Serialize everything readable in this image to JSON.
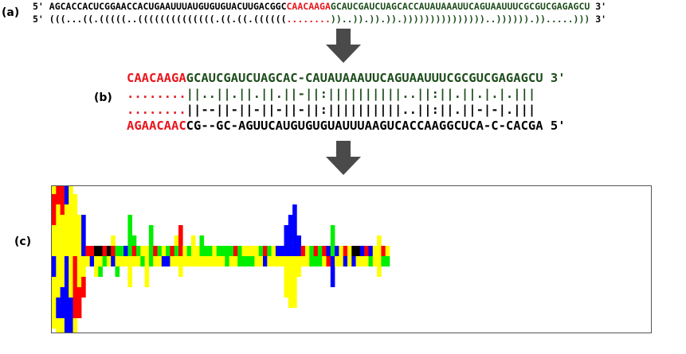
{
  "panel_a": {
    "label": "(a)",
    "seq_prefix": "5' ",
    "seq_black": "AGCACCACUCGGAACCACUGAAUUUAUGUGUGUACUUGACGGC",
    "seq_red": "CAACAAGA",
    "seq_green": "GCAUCGAUCUAGCACCAUAUAAAUUCAGUAAUUUCGCGUCGAGAGCU",
    "seq_suffix": " 3'",
    "struct_prefix": "5' ",
    "struct_black": "(((...((.(((((..((((((((((((((.((.((.((((((",
    "struct_red": "........",
    "struct_green": "))..)).)).)).)))))))))))))))..)))))).)).....)))",
    "struct_suffix": " 3'"
  },
  "panel_b": {
    "label": "(b)",
    "row1_red": "CAACAAGA",
    "row1_green": "GCAUCGAUCUAGCAC-CAUAUAAAUUCAGUAAUUUCGCGUCGAGAGCU 3'",
    "row2_red": "........",
    "row2_green": "||..||.||.||.||-||:||||||||||..||:||.||.|.|.|||",
    "row3_red": "........",
    "row3_black": "||--||-||-||-||-||:||||||||||..||:||.||-|-|.|||",
    "row4_red": "AGAACAAC",
    "row4_black": "CG--GC-AGUUCAUGUGUGUAUUUAAGUCACCAAGGCUCA-C-CACGA 5'"
  },
  "panel_c": {
    "label": "(c)"
  },
  "colors": {
    "red": "#ff0000",
    "green": "#00ee00",
    "blue": "#0000ff",
    "yellow": "#ffff00",
    "black": "#000000",
    "arrow": "#4a4a4a"
  },
  "chart_data": {
    "type": "bar",
    "description_of_encoding": "",
    "columns": [
      {
        "up": [
          [
            "yellow",
            3
          ],
          [
            "red",
            3
          ],
          [
            "yellow",
            2
          ]
        ],
        "down": [
          [
            "blue",
            2
          ],
          [
            "yellow",
            3
          ],
          [
            "yellow",
            2
          ]
        ]
      },
      {
        "up": [
          [
            "yellow",
            5
          ],
          [
            "red",
            3
          ]
        ],
        "down": [
          [
            "yellow",
            4
          ],
          [
            "blue",
            2
          ],
          [
            "yellow",
            2
          ]
        ]
      },
      {
        "up": [
          [
            "yellow",
            4
          ],
          [
            "red",
            3
          ]
        ],
        "down": [
          [
            "yellow",
            3
          ],
          [
            "blue",
            3
          ],
          [
            "yellow",
            3
          ]
        ]
      },
      {
        "up": [
          [
            "yellow",
            5
          ],
          [
            "blue",
            4
          ]
        ],
        "down": [
          [
            "blue",
            4
          ],
          [
            "blue",
            4
          ]
        ]
      },
      {
        "up": [
          [
            "yellow",
            5
          ],
          [
            "yellow",
            3
          ],
          [
            "blue",
            1
          ]
        ],
        "down": [
          [
            "yellow",
            4
          ],
          [
            "blue",
            2
          ],
          [
            "blue",
            3
          ]
        ]
      },
      {
        "up": [
          [
            "yellow",
            4
          ],
          [
            "yellow",
            2
          ]
        ],
        "down": [
          [
            "red",
            4
          ],
          [
            "red",
            2
          ],
          [
            "yellow",
            3
          ]
        ]
      },
      {
        "up": [
          [
            "yellow",
            2
          ],
          [
            "yellow",
            2
          ]
        ],
        "down": [
          [
            "yellow",
            3
          ],
          [
            "red",
            3
          ]
        ]
      },
      {
        "up": [
          [
            "blue",
            2
          ],
          [
            "blue",
            2
          ]
        ],
        "down": [
          [
            "yellow",
            2
          ],
          [
            "red",
            2
          ]
        ]
      },
      {
        "up": [
          [
            "red",
            1
          ]
        ],
        "down": [
          [
            "yellow",
            1
          ]
        ]
      },
      {
        "up": [
          [
            "red",
            1
          ]
        ],
        "down": [
          [
            "blue",
            1
          ]
        ]
      },
      {
        "up": [
          [
            "black",
            1
          ]
        ],
        "down": [
          [
            "yellow",
            2
          ]
        ]
      },
      {
        "up": [
          [
            "black",
            1
          ]
        ],
        "down": [
          [
            "yellow",
            1
          ],
          [
            "green",
            1
          ]
        ]
      },
      {
        "up": [
          [
            "red",
            1
          ]
        ],
        "down": [
          [
            "green",
            1
          ]
        ]
      },
      {
        "up": [
          [
            "black",
            1
          ]
        ],
        "down": [
          [
            "yellow",
            1
          ]
        ]
      },
      {
        "up": [
          [
            "red",
            1
          ],
          [
            "yellow",
            1
          ]
        ],
        "down": [
          [
            "blue",
            1
          ]
        ]
      },
      {
        "up": [
          [
            "green",
            1
          ]
        ],
        "down": [
          [
            "yellow",
            1
          ],
          [
            "green",
            1
          ]
        ]
      },
      {
        "up": [
          [
            "green",
            1
          ]
        ],
        "down": [
          [
            "yellow",
            1
          ]
        ]
      },
      {
        "up": [
          [
            "blue",
            1
          ]
        ],
        "down": [
          [
            "yellow",
            1
          ]
        ]
      },
      {
        "up": [
          [
            "green",
            4
          ]
        ],
        "down": [
          [
            "yellow",
            3
          ]
        ]
      },
      {
        "up": [
          [
            "red",
            1
          ],
          [
            "green",
            1
          ]
        ],
        "down": [
          [
            "yellow",
            1
          ]
        ]
      },
      {
        "up": [
          [
            "green",
            1
          ]
        ],
        "down": [
          [
            "yellow",
            1
          ]
        ]
      },
      {
        "up": [
          [
            "yellow",
            1
          ]
        ],
        "down": [
          [
            "green",
            1
          ]
        ]
      },
      {
        "up": [
          [
            "yellow",
            1
          ]
        ],
        "down": [
          [
            "yellow",
            3
          ]
        ]
      },
      {
        "up": [
          [
            "green",
            2
          ],
          [
            "green",
            1
          ]
        ],
        "down": [
          [
            "green",
            1
          ]
        ]
      },
      {
        "up": [
          [
            "red",
            1
          ]
        ],
        "down": [
          [
            "yellow",
            1
          ]
        ]
      },
      {
        "up": [
          [
            "green",
            1
          ]
        ],
        "down": [
          [
            "yellow",
            1
          ]
        ]
      },
      {
        "up": [
          [
            "yellow",
            1
          ]
        ],
        "down": [
          [
            "blue",
            1
          ]
        ]
      },
      {
        "up": [
          [
            "green",
            1
          ]
        ],
        "down": [
          [
            "blue",
            1
          ]
        ]
      },
      {
        "up": [
          [
            "red",
            1
          ]
        ],
        "down": [
          [
            "yellow",
            1
          ]
        ]
      },
      {
        "up": [
          [
            "green",
            1
          ],
          [
            "yellow",
            1
          ]
        ],
        "down": [
          [
            "yellow",
            1
          ]
        ]
      },
      {
        "up": [
          [
            "red",
            3
          ]
        ],
        "down": [
          [
            "yellow",
            2
          ]
        ]
      },
      {
        "up": [
          [
            "yellow",
            1
          ]
        ],
        "down": [
          [
            "yellow",
            1
          ]
        ]
      },
      {
        "up": [
          [
            "green",
            1
          ]
        ],
        "down": [
          [
            "yellow",
            1
          ]
        ]
      },
      {
        "up": [
          [
            "yellow",
            2
          ]
        ],
        "down": [
          [
            "yellow",
            1
          ]
        ]
      },
      {
        "up": [
          [
            "yellow",
            1
          ]
        ],
        "down": [
          [
            "yellow",
            1
          ]
        ]
      },
      {
        "up": [
          [
            "green",
            2
          ]
        ],
        "down": [
          [
            "yellow",
            1
          ]
        ]
      },
      {
        "up": [
          [
            "green",
            1
          ]
        ],
        "down": [
          [
            "yellow",
            1
          ]
        ]
      },
      {
        "up": [
          [
            "green",
            1
          ]
        ],
        "down": [
          [
            "yellow",
            1
          ]
        ]
      },
      {
        "up": [
          [
            "yellow",
            1
          ]
        ],
        "down": [
          [
            "yellow",
            1
          ]
        ]
      },
      {
        "up": [
          [
            "green",
            1
          ]
        ],
        "down": [
          [
            "yellow",
            1
          ]
        ]
      },
      {
        "up": [
          [
            "green",
            1
          ]
        ],
        "down": [
          [
            "yellow",
            1
          ]
        ]
      },
      {
        "up": [
          [
            "green",
            1
          ]
        ],
        "down": [
          [
            "green",
            1
          ]
        ]
      },
      {
        "up": [
          [
            "green",
            1
          ]
        ],
        "down": [
          [
            "yellow",
            1
          ]
        ]
      },
      {
        "up": [
          [
            "red",
            1
          ]
        ],
        "down": [
          [
            "yellow",
            1
          ]
        ]
      },
      {
        "up": [
          [
            "green",
            1
          ]
        ],
        "down": [
          [
            "green",
            1
          ]
        ]
      },
      {
        "up": [
          [
            "yellow",
            1
          ]
        ],
        "down": [
          [
            "green",
            1
          ]
        ]
      },
      {
        "up": [
          [
            "yellow",
            1
          ]
        ],
        "down": [
          [
            "green",
            1
          ]
        ]
      },
      {
        "up": [
          [
            "yellow",
            1
          ]
        ],
        "down": [
          [
            "green",
            1
          ]
        ]
      },
      {
        "up": [
          [
            "yellow",
            1
          ]
        ],
        "down": [
          [
            "yellow",
            1
          ]
        ]
      },
      {
        "up": [
          [
            "green",
            1
          ]
        ],
        "down": [
          [
            "yellow",
            1
          ]
        ]
      },
      {
        "up": [
          [
            "red",
            1
          ]
        ],
        "down": [
          [
            "blue",
            1
          ]
        ]
      },
      {
        "up": [
          [
            "green",
            1
          ]
        ],
        "down": [
          [
            "yellow",
            1
          ]
        ]
      },
      {
        "up": [
          [
            "yellow",
            1
          ]
        ],
        "down": [
          [
            "yellow",
            1
          ]
        ]
      },
      {
        "up": [
          [
            "blue",
            1
          ]
        ],
        "down": [
          [
            "yellow",
            1
          ]
        ]
      },
      {
        "up": [
          [
            "blue",
            1
          ]
        ],
        "down": [
          [
            "yellow",
            1
          ]
        ]
      },
      {
        "up": [
          [
            "blue",
            2
          ],
          [
            "blue",
            1
          ]
        ],
        "down": [
          [
            "yellow",
            2
          ],
          [
            "yellow",
            2
          ]
        ]
      },
      {
        "up": [
          [
            "blue",
            3
          ],
          [
            "blue",
            1
          ]
        ],
        "down": [
          [
            "yellow",
            3
          ],
          [
            "yellow",
            2
          ]
        ]
      },
      {
        "up": [
          [
            "blue",
            3
          ],
          [
            "blue",
            2
          ]
        ],
        "down": [
          [
            "yellow",
            3
          ],
          [
            "yellow",
            2
          ]
        ]
      },
      {
        "up": [
          [
            "blue",
            1
          ],
          [
            "blue",
            1
          ]
        ],
        "down": [
          [
            "yellow",
            2
          ]
        ]
      },
      {
        "up": [
          [
            "red",
            1
          ]
        ],
        "down": [
          [
            "yellow",
            1
          ]
        ]
      },
      {
        "up": [
          [
            "yellow",
            1
          ]
        ],
        "down": [
          [
            "yellow",
            1
          ]
        ]
      },
      {
        "up": [
          [
            "green",
            1
          ]
        ],
        "down": [
          [
            "green",
            1
          ]
        ]
      },
      {
        "up": [
          [
            "red",
            1
          ]
        ],
        "down": [
          [
            "green",
            1
          ]
        ]
      },
      {
        "up": [
          [
            "green",
            1
          ]
        ],
        "down": [
          [
            "green",
            1
          ]
        ]
      },
      {
        "up": [
          [
            "red",
            1
          ]
        ],
        "down": [
          [
            "yellow",
            1
          ]
        ]
      },
      {
        "up": [
          [
            "blue",
            1
          ]
        ],
        "down": [
          [
            "red",
            1
          ]
        ]
      },
      {
        "up": [
          [
            "green",
            3
          ]
        ],
        "down": [
          [
            "blue",
            3
          ]
        ]
      },
      {
        "up": [
          [
            "blue",
            1
          ]
        ],
        "down": [
          [
            "yellow",
            1
          ]
        ]
      },
      {
        "up": [
          [
            "yellow",
            1
          ]
        ],
        "down": [
          [
            "yellow",
            1
          ]
        ]
      },
      {
        "up": [
          [
            "red",
            1
          ]
        ],
        "down": [
          [
            "blue",
            1
          ]
        ]
      },
      {
        "up": [
          [
            "yellow",
            1
          ]
        ],
        "down": [
          [
            "yellow",
            1
          ]
        ]
      },
      {
        "up": [
          [
            "black",
            1
          ]
        ],
        "down": [
          [
            "blue",
            1
          ]
        ]
      },
      {
        "up": [
          [
            "black",
            1
          ]
        ],
        "down": [
          [
            "yellow",
            1
          ]
        ]
      },
      {
        "up": [
          [
            "blue",
            1
          ]
        ],
        "down": [
          [
            "yellow",
            1
          ]
        ]
      },
      {
        "up": [
          [
            "red",
            1
          ]
        ],
        "down": [
          [
            "yellow",
            1
          ]
        ]
      },
      {
        "up": [
          [
            "blue",
            1
          ]
        ],
        "down": [
          [
            "green",
            1
          ]
        ]
      },
      {
        "up": [
          [
            "yellow",
            1
          ]
        ],
        "down": [
          [
            "yellow",
            1
          ]
        ]
      },
      {
        "up": [
          [
            "yellow",
            2
          ]
        ],
        "down": [
          [
            "yellow",
            2
          ]
        ]
      },
      {
        "up": [
          [
            "red",
            1
          ]
        ],
        "down": [
          [
            "green",
            1
          ]
        ]
      },
      {
        "up": [
          [
            "yellow",
            1
          ]
        ],
        "down": [
          [
            "green",
            1
          ]
        ]
      }
    ]
  }
}
